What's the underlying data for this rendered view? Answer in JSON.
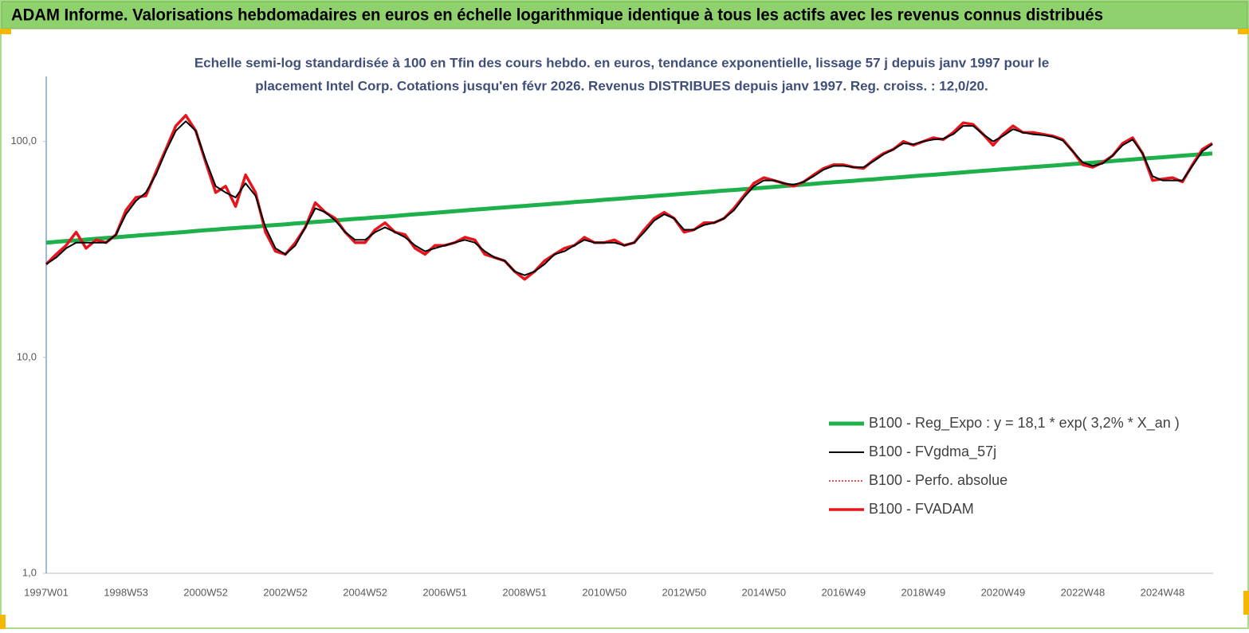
{
  "chart_data": {
    "type": "line",
    "header": "ADAM Informe. Valorisations hebdomadaires en euros en échelle logarithmique identique à tous les actifs avec les revenus connus distribués",
    "title": [
      "Echelle semi-log standardisée à 100 en Tfin des cours hebdo. en euros, tendance exponentielle, lissage 57 j depuis janv 1997 pour le",
      "placement Intel Corp. Cotations jusqu'en févr 2026. Revenus DISTRIBUES depuis janv 1997. Reg. croiss. : 12,0/20."
    ],
    "log_scale": true,
    "ylim": [
      1,
      200
    ],
    "yticks": [
      {
        "value": 1,
        "label": "1,0"
      },
      {
        "value": 10,
        "label": "10,0"
      },
      {
        "value": 100,
        "label": "100,0"
      }
    ],
    "legend": "bottom-right",
    "categories": [
      "1997W01",
      null,
      null,
      null,
      null,
      null,
      null,
      null,
      "1998W53",
      null,
      null,
      null,
      null,
      null,
      null,
      null,
      "2000W52",
      null,
      null,
      null,
      null,
      null,
      null,
      null,
      "2002W52",
      null,
      null,
      null,
      null,
      null,
      null,
      null,
      "2004W52",
      null,
      null,
      null,
      null,
      null,
      null,
      null,
      "2006W51",
      null,
      null,
      null,
      null,
      null,
      null,
      null,
      "2008W51",
      null,
      null,
      null,
      null,
      null,
      null,
      null,
      "2010W50",
      null,
      null,
      null,
      null,
      null,
      null,
      null,
      "2012W50",
      null,
      null,
      null,
      null,
      null,
      null,
      null,
      "2014W50",
      null,
      null,
      null,
      null,
      null,
      null,
      null,
      "2016W49",
      null,
      null,
      null,
      null,
      null,
      null,
      null,
      "2018W49",
      null,
      null,
      null,
      null,
      null,
      null,
      null,
      "2020W49",
      null,
      null,
      null,
      null,
      null,
      null,
      null,
      "2022W48",
      null,
      null,
      null,
      null,
      null,
      null,
      null,
      "2024W48",
      null,
      null,
      null,
      null,
      null
    ],
    "series": [
      {
        "name": "B100 - Reg_Expo : y = 18,1 * exp( 3,2% *  X_an )",
        "color": "#1eb04a",
        "width": 5,
        "values": [
          34.0,
          34.3,
          34.6,
          34.8,
          35.1,
          35.4,
          35.7,
          36.0,
          36.3,
          36.6,
          36.9,
          37.2,
          37.5,
          37.8,
          38.1,
          38.5,
          38.8,
          39.1,
          39.4,
          39.7,
          40.0,
          40.3,
          40.7,
          41.0,
          41.3,
          41.7,
          42.0,
          42.4,
          42.7,
          43.1,
          43.4,
          43.8,
          44.1,
          44.5,
          44.8,
          45.2,
          45.6,
          46.0,
          46.3,
          46.7,
          47.1,
          47.5,
          47.9,
          48.3,
          48.7,
          49.1,
          49.5,
          49.9,
          50.3,
          50.7,
          51.1,
          51.5,
          51.9,
          52.4,
          52.8,
          53.2,
          53.7,
          54.1,
          54.5,
          55.0,
          55.4,
          55.9,
          56.3,
          56.8,
          57.3,
          57.7,
          58.2,
          58.7,
          59.2,
          59.6,
          60.1,
          60.6,
          61.1,
          61.6,
          62.1,
          62.6,
          63.1,
          63.6,
          64.2,
          64.7,
          65.2,
          65.7,
          66.3,
          66.8,
          67.4,
          67.9,
          68.5,
          69.0,
          69.6,
          70.1,
          70.7,
          71.3,
          71.9,
          72.5,
          73.1,
          73.7,
          74.3,
          74.9,
          75.5,
          76.1,
          76.7,
          77.3,
          77.9,
          78.6,
          79.2,
          79.8,
          80.5,
          81.2,
          81.8,
          82.5,
          83.2,
          83.8,
          84.5,
          85.2,
          85.9,
          86.6,
          87.3,
          88.0
        ]
      },
      {
        "name": "B100 - FVgdma_57j",
        "color": "#000000",
        "width": 2,
        "values": [
          27,
          29,
          32,
          34,
          34,
          34,
          34,
          37,
          46,
          53,
          58,
          70,
          90,
          112,
          124,
          112,
          82,
          62,
          58,
          55,
          64,
          56,
          40,
          32,
          30,
          33,
          40,
          49,
          47,
          43,
          38,
          35,
          35,
          38,
          40,
          38,
          36,
          33,
          31,
          32,
          33,
          34,
          35,
          34,
          31,
          29,
          28,
          25,
          24,
          25,
          27,
          30,
          31,
          33,
          35,
          34,
          34,
          34,
          33,
          34,
          38,
          43,
          46,
          44,
          39,
          39,
          41,
          42,
          44,
          48,
          55,
          62,
          66,
          66,
          64,
          63,
          65,
          69,
          74,
          77,
          77,
          76,
          76,
          81,
          87,
          92,
          98,
          97,
          100,
          102,
          103,
          108,
          118,
          118,
          108,
          100,
          106,
          114,
          110,
          108,
          107,
          105,
          101,
          90,
          80,
          77,
          79,
          86,
          96,
          102,
          88,
          69,
          66,
          66,
          66,
          77,
          90,
          97
        ]
      },
      {
        "name": "B100 - Perfo. absolue",
        "color": "#e8141b",
        "width": 1.5,
        "dash": true,
        "values": [
          27,
          30,
          33,
          38,
          32,
          35,
          34,
          37,
          48,
          55,
          56,
          72,
          92,
          118,
          132,
          112,
          80,
          58,
          62,
          50,
          70,
          58,
          38,
          31,
          30,
          34,
          40,
          52,
          47,
          44,
          38,
          34,
          34,
          39,
          42,
          38,
          37,
          32,
          30,
          33,
          33,
          34,
          36,
          35,
          30,
          29,
          28,
          25,
          23,
          25,
          28,
          30,
          32,
          33,
          36,
          34,
          34,
          35,
          33,
          34,
          39,
          44,
          47,
          44,
          38,
          39,
          42,
          42,
          44,
          49,
          56,
          64,
          68,
          66,
          64,
          62,
          65,
          70,
          75,
          78,
          78,
          76,
          75,
          82,
          88,
          92,
          100,
          96,
          100,
          104,
          102,
          110,
          122,
          120,
          108,
          96,
          108,
          118,
          110,
          110,
          108,
          106,
          102,
          90,
          78,
          76,
          80,
          86,
          98,
          104,
          88,
          66,
          67,
          68,
          65,
          78,
          92,
          98
        ]
      },
      {
        "name": "B100 - FVADAM",
        "color": "#e8141b",
        "width": 3.5,
        "values": [
          27,
          30,
          33,
          38,
          32,
          35,
          34,
          37,
          48,
          55,
          56,
          72,
          92,
          118,
          132,
          112,
          80,
          58,
          62,
          50,
          70,
          58,
          38,
          31,
          30,
          34,
          40,
          52,
          47,
          44,
          38,
          34,
          34,
          39,
          42,
          38,
          37,
          32,
          30,
          33,
          33,
          34,
          36,
          35,
          30,
          29,
          28,
          25,
          23,
          25,
          28,
          30,
          32,
          33,
          36,
          34,
          34,
          35,
          33,
          34,
          39,
          44,
          47,
          44,
          38,
          39,
          42,
          42,
          44,
          49,
          56,
          64,
          68,
          66,
          64,
          62,
          65,
          70,
          75,
          78,
          78,
          76,
          75,
          82,
          88,
          92,
          100,
          96,
          100,
          104,
          102,
          110,
          122,
          120,
          108,
          96,
          108,
          118,
          110,
          110,
          108,
          106,
          102,
          90,
          78,
          76,
          80,
          86,
          98,
          104,
          88,
          66,
          67,
          68,
          65,
          78,
          92,
          98
        ]
      }
    ]
  }
}
